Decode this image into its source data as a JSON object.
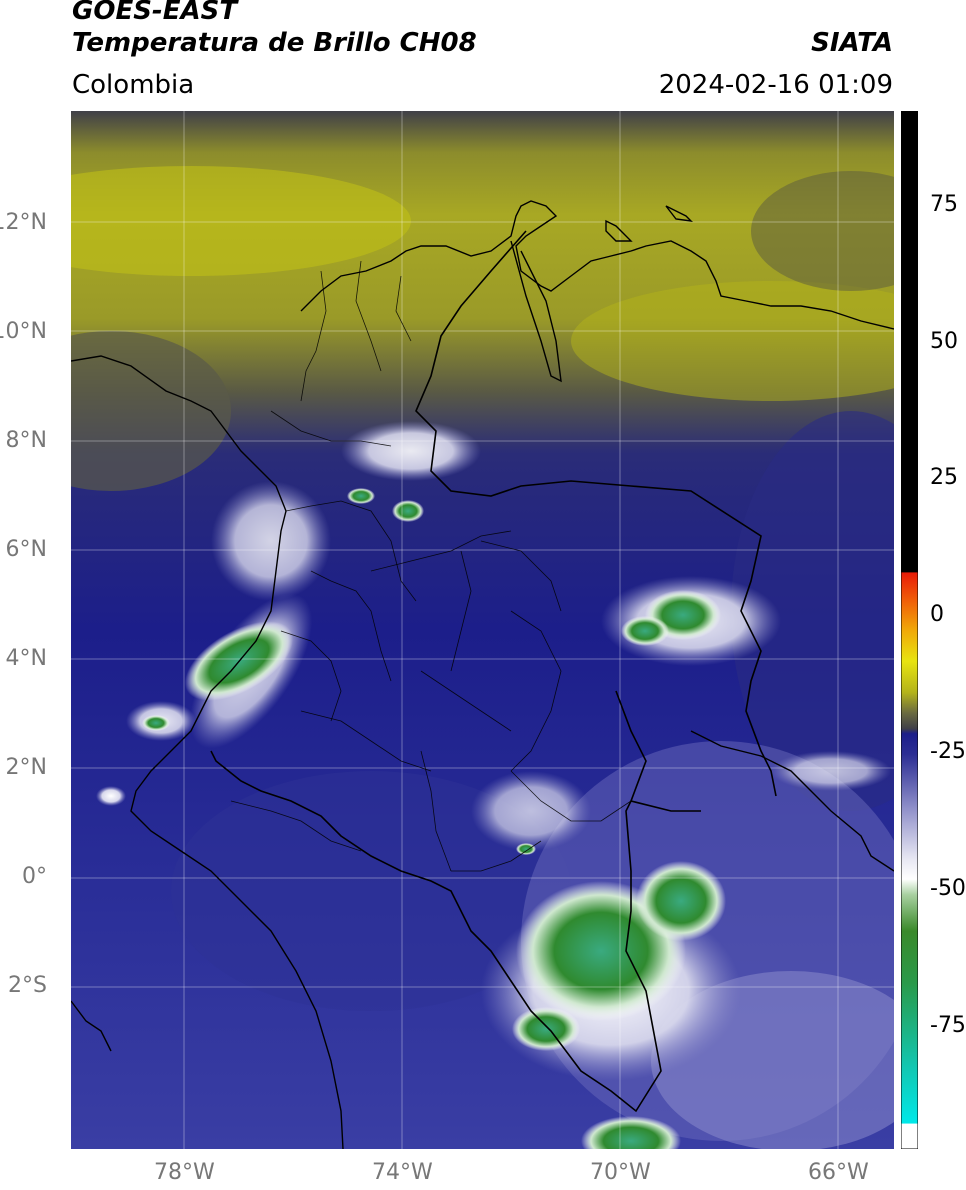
{
  "header": {
    "satellite": "GOES-EAST",
    "product": "Temperatura de Brillo CH08",
    "region": "Colombia",
    "agency": "SIATA",
    "datetime": "2024-02-16 01:09"
  },
  "map": {
    "lat_range": [
      -4.5,
      14.5
    ],
    "lon_range": [
      -80,
      -65
    ],
    "lat_ticks": [
      "12°N",
      "10°N",
      "8°N",
      "6°N",
      "4°N",
      "2°N",
      "0°",
      "2°S"
    ],
    "lon_ticks": [
      "78°W",
      "74°W",
      "70°W",
      "66°W"
    ],
    "gridlines": true,
    "features": [
      "coastline",
      "country-borders",
      "department-borders"
    ]
  },
  "colorbar": {
    "range": [
      -100,
      90
    ],
    "tick_labels": [
      "75",
      "50",
      "25",
      "0",
      "-25",
      "-50",
      "-75"
    ],
    "colors": {
      "cold_white": "#ffffff",
      "cyan": "#12d6cf",
      "green": "#2f8a2f",
      "light": "#f4f4f4",
      "blue": "#1a1c8a",
      "gray": "#505048",
      "olive": "#b4b41a",
      "yellow": "#e8e410",
      "orange": "#f08a08",
      "red": "#e82808",
      "warm_black": "#000000"
    }
  }
}
